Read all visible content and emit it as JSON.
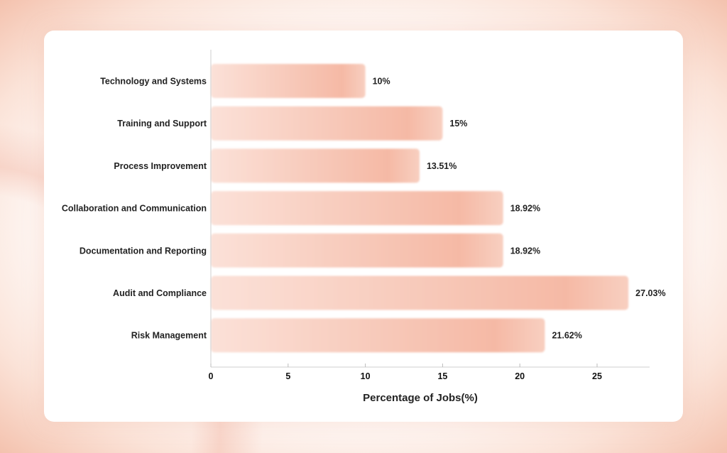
{
  "chart_data": {
    "type": "bar",
    "orientation": "horizontal",
    "categories": [
      "Technology and Systems",
      "Training and Support",
      "Process Improvement",
      "Collaboration and Communication",
      "Documentation and Reporting",
      "Audit and Compliance",
      "Risk Management"
    ],
    "values": [
      10,
      15,
      13.51,
      18.92,
      18.92,
      27.03,
      21.62
    ],
    "data_labels": [
      "10%",
      "15%",
      "13.51%",
      "18.92%",
      "18.92%",
      "27.03%",
      "21.62%"
    ],
    "title": "",
    "xlabel": "Percentage of Jobs(%)",
    "ylabel": "",
    "xlim": [
      0,
      28.5
    ],
    "xticks": [
      "0",
      "5",
      "10",
      "15",
      "20",
      "25"
    ],
    "grid": false,
    "bar_color": "#f6c3b2"
  }
}
